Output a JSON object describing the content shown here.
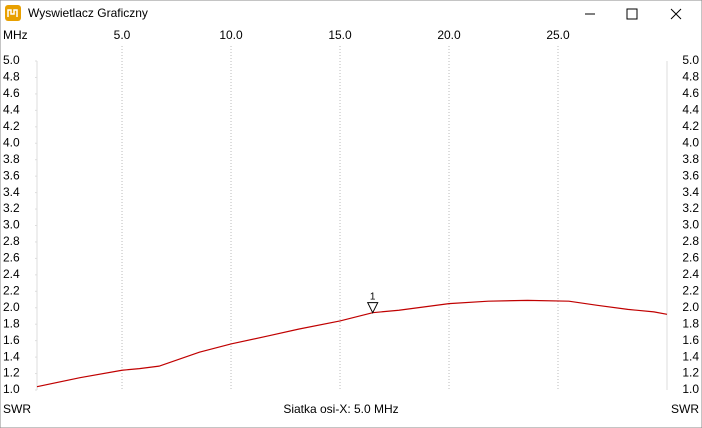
{
  "window": {
    "title": "Wyswietlacz Graficzny"
  },
  "chart_data": {
    "type": "line",
    "x_unit_label": "MHz",
    "y_label": "SWR",
    "x_axis_note": "Siatka osi-X: 5.0 MHz",
    "x": [
      1.1,
      3.07,
      5.0,
      5.8,
      6.7,
      8.55,
      10.0,
      11.75,
      13.1,
      15.0,
      16.5,
      17.7,
      20.0,
      21.8,
      23.6,
      25.5,
      26.8,
      28.2,
      29.4,
      30.0
    ],
    "values": [
      1.04,
      1.15,
      1.24,
      1.26,
      1.29,
      1.46,
      1.56,
      1.66,
      1.74,
      1.84,
      1.94,
      1.97,
      2.05,
      2.08,
      2.09,
      2.08,
      2.03,
      1.98,
      1.95,
      1.92
    ],
    "color": "#c00000",
    "xlim": [
      1.1,
      30.0
    ],
    "xticks": [
      {
        "value": 5,
        "label": "5.0"
      },
      {
        "value": 10,
        "label": "10.0"
      },
      {
        "value": 15,
        "label": "15.0"
      },
      {
        "value": 20,
        "label": "20.0"
      },
      {
        "value": 25,
        "label": "25.0"
      }
    ],
    "ylim": [
      1.0,
      5.0
    ],
    "yticks": [
      {
        "value": 1,
        "label": "1.0"
      },
      1.2,
      1.4,
      1.6,
      1.8,
      {
        "value": 2,
        "label": "2.0"
      },
      2.2,
      2.4,
      2.6,
      2.8,
      {
        "value": 3,
        "label": "3.0"
      },
      3.2,
      3.4,
      3.6,
      3.8,
      {
        "value": 4,
        "label": "4.0"
      },
      4.2,
      4.4,
      4.6,
      4.8,
      {
        "value": 5,
        "label": "5.0"
      }
    ],
    "grid": true,
    "markers": [
      {
        "label": "1",
        "x": 16.5,
        "value": 1.94
      }
    ]
  }
}
